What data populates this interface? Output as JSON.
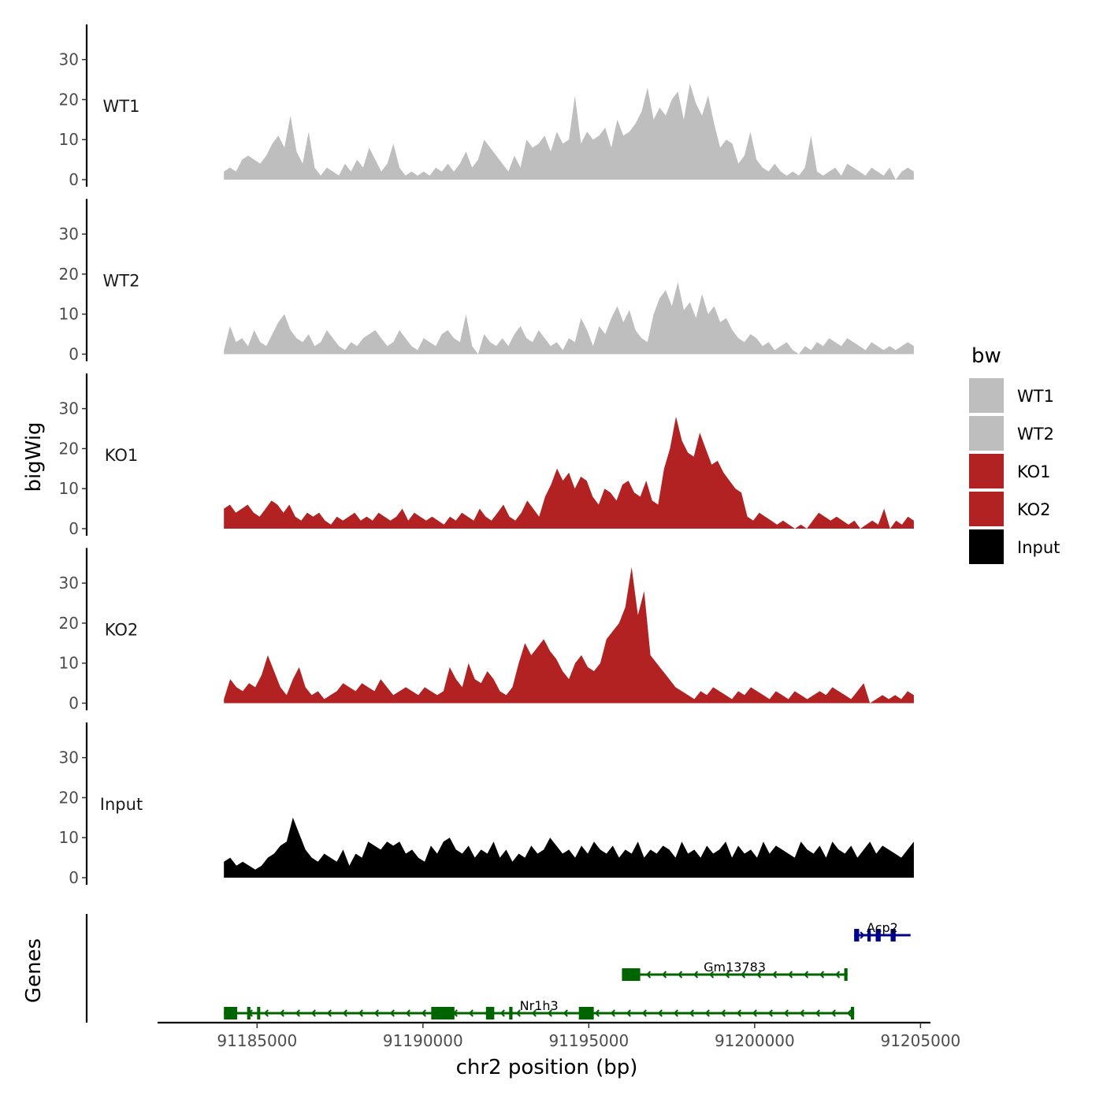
{
  "chart_data": {
    "type": "area",
    "title": "",
    "xlabel": "chr2 position (bp)",
    "ylabel": "bigWig",
    "genes_label": "Genes",
    "xlim": [
      91182000,
      91205300
    ],
    "signal_range": [
      91184000,
      91204800
    ],
    "ylim": [
      0,
      38
    ],
    "y_ticks": [
      0,
      10,
      20,
      30
    ],
    "x_ticks": [
      91185000,
      91190000,
      91195000,
      91200000,
      91205000
    ],
    "x_tick_labels": [
      "91185000",
      "91190000",
      "91195000",
      "91200000",
      "91205000"
    ],
    "legend": {
      "title": "bw",
      "placement": "right",
      "entries": [
        {
          "label": "WT1",
          "color": "#bebebe"
        },
        {
          "label": "WT2",
          "color": "#bebebe"
        },
        {
          "label": "KO1",
          "color": "#b22222"
        },
        {
          "label": "KO2",
          "color": "#b22222"
        },
        {
          "label": "Input",
          "color": "#000000"
        }
      ]
    },
    "series": [
      {
        "name": "WT1",
        "color": "#bebebe",
        "values": [
          2,
          3,
          2,
          5,
          6,
          5,
          4,
          6,
          9,
          11,
          8,
          16,
          7,
          4,
          12,
          3,
          1,
          3,
          2,
          1,
          4,
          2,
          5,
          3,
          8,
          5,
          2,
          4,
          9,
          3,
          1,
          2,
          1,
          2,
          1,
          3,
          2,
          4,
          2,
          4,
          7,
          3,
          5,
          10,
          8,
          6,
          4,
          2,
          6,
          3,
          10,
          8,
          9,
          11,
          7,
          12,
          9,
          10,
          21,
          9,
          12,
          10,
          11,
          13,
          8,
          15,
          11,
          12,
          14,
          17,
          23,
          15,
          18,
          16,
          20,
          22,
          15,
          24,
          19,
          16,
          21,
          14,
          8,
          10,
          9,
          4,
          6,
          12,
          5,
          3,
          2,
          4,
          2,
          1,
          2,
          1,
          3,
          11,
          2,
          1,
          2,
          3,
          1,
          4,
          3,
          2,
          1,
          3,
          2,
          1,
          3,
          0,
          2,
          3,
          2
        ]
      },
      {
        "name": "WT2",
        "color": "#bebebe",
        "values": [
          1,
          7,
          3,
          4,
          2,
          6,
          3,
          2,
          5,
          8,
          10,
          6,
          4,
          3,
          5,
          2,
          3,
          6,
          4,
          2,
          1,
          3,
          2,
          4,
          5,
          6,
          4,
          2,
          3,
          6,
          4,
          2,
          1,
          4,
          3,
          2,
          5,
          6,
          4,
          3,
          10,
          2,
          0,
          5,
          3,
          2,
          4,
          2,
          5,
          7,
          4,
          3,
          6,
          4,
          2,
          3,
          1,
          4,
          3,
          9,
          6,
          2,
          7,
          5,
          9,
          12,
          8,
          11,
          6,
          4,
          3,
          10,
          14,
          16,
          12,
          18,
          11,
          13,
          9,
          15,
          10,
          12,
          8,
          9,
          6,
          4,
          3,
          5,
          4,
          2,
          3,
          1,
          2,
          3,
          1,
          0,
          2,
          1,
          3,
          2,
          4,
          3,
          2,
          4,
          3,
          2,
          1,
          3,
          2,
          1,
          2,
          1,
          2,
          3,
          2
        ]
      },
      {
        "name": "KO1",
        "color": "#b22222",
        "values": [
          5,
          6,
          4,
          5,
          6,
          4,
          3,
          5,
          7,
          6,
          4,
          6,
          3,
          2,
          4,
          3,
          4,
          2,
          1,
          3,
          2,
          3,
          4,
          2,
          3,
          2,
          4,
          3,
          2,
          3,
          5,
          2,
          4,
          3,
          2,
          3,
          2,
          1,
          3,
          2,
          4,
          3,
          2,
          5,
          3,
          2,
          4,
          6,
          3,
          2,
          4,
          7,
          5,
          3,
          8,
          11,
          15,
          12,
          14,
          10,
          13,
          12,
          8,
          6,
          10,
          9,
          7,
          11,
          12,
          9,
          8,
          12,
          7,
          6,
          15,
          20,
          28,
          22,
          19,
          18,
          24,
          20,
          16,
          17,
          14,
          12,
          10,
          9,
          3,
          2,
          4,
          3,
          2,
          1,
          2,
          1,
          0,
          1,
          0,
          2,
          4,
          3,
          2,
          3,
          2,
          1,
          2,
          0,
          1,
          2,
          1,
          5,
          0,
          2,
          1,
          3,
          2
        ]
      },
      {
        "name": "KO2",
        "color": "#b22222",
        "values": [
          1,
          6,
          4,
          3,
          5,
          4,
          7,
          12,
          8,
          4,
          2,
          6,
          9,
          4,
          2,
          3,
          1,
          2,
          3,
          5,
          4,
          3,
          5,
          4,
          3,
          6,
          4,
          2,
          3,
          4,
          3,
          2,
          4,
          3,
          2,
          3,
          9,
          6,
          4,
          10,
          6,
          5,
          8,
          6,
          3,
          2,
          4,
          10,
          15,
          12,
          14,
          16,
          13,
          11,
          8,
          6,
          10,
          12,
          9,
          8,
          10,
          16,
          18,
          20,
          24,
          34,
          22,
          28,
          12,
          10,
          8,
          6,
          4,
          3,
          2,
          1,
          3,
          2,
          4,
          3,
          2,
          1,
          3,
          2,
          4,
          3,
          2,
          1,
          3,
          2,
          1,
          3,
          2,
          1,
          2,
          3,
          2,
          4,
          3,
          2,
          1,
          3,
          5,
          0,
          1,
          2,
          1,
          2,
          1,
          3,
          2
        ]
      },
      {
        "name": "Input",
        "color": "#000000",
        "values": [
          4,
          5,
          3,
          4,
          3,
          2,
          3,
          5,
          6,
          8,
          9,
          15,
          11,
          7,
          5,
          4,
          6,
          5,
          4,
          7,
          3,
          6,
          5,
          9,
          8,
          7,
          9,
          8,
          9,
          6,
          7,
          5,
          4,
          8,
          6,
          9,
          10,
          7,
          6,
          8,
          5,
          7,
          6,
          9,
          5,
          7,
          4,
          6,
          5,
          8,
          6,
          7,
          10,
          8,
          6,
          7,
          5,
          8,
          6,
          9,
          7,
          6,
          8,
          5,
          7,
          6,
          9,
          5,
          7,
          6,
          8,
          7,
          5,
          9,
          6,
          7,
          5,
          8,
          6,
          7,
          9,
          5,
          8,
          6,
          7,
          5,
          9,
          6,
          8,
          7,
          6,
          5,
          9,
          7,
          6,
          8,
          5,
          9,
          7,
          6,
          8,
          5,
          7,
          9,
          6,
          8,
          7,
          6,
          5,
          7,
          9
        ]
      }
    ],
    "genes": [
      {
        "name": "Acp2",
        "color": "#00008b",
        "strand": "+",
        "start": 91203000,
        "end": 91204700,
        "exons": [
          [
            91203000,
            91203150
          ],
          [
            91203400,
            91203500
          ],
          [
            91203650,
            91203800
          ],
          [
            91204100,
            91204250
          ]
        ]
      },
      {
        "name": "Gm13783",
        "color": "#006400",
        "strand": "-",
        "start": 91196000,
        "end": 91202800,
        "exons": [
          [
            91196000,
            91196550
          ],
          [
            91202700,
            91202800
          ]
        ]
      },
      {
        "name": "Nr1h3",
        "color": "#006400",
        "strand": "-",
        "start": 91184000,
        "end": 91203000,
        "exons": [
          [
            91184000,
            91184400
          ],
          [
            91184700,
            91184800
          ],
          [
            91185000,
            91185080
          ],
          [
            91190250,
            91190950
          ],
          [
            91191900,
            91192150
          ],
          [
            91192600,
            91192700
          ],
          [
            91194700,
            91195150
          ],
          [
            91202900,
            91203000
          ]
        ]
      }
    ]
  }
}
